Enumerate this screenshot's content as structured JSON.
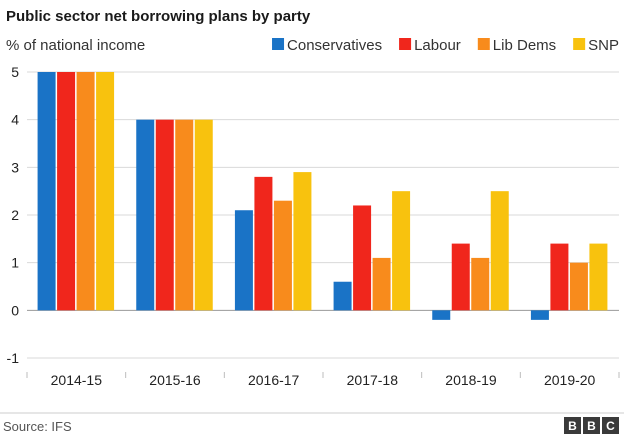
{
  "chart_data": {
    "type": "bar",
    "title": "Public sector net borrowing plans by party",
    "ylabel": "% of national income",
    "xlabel": "",
    "categories": [
      "2014-15",
      "2015-16",
      "2016-17",
      "2017-18",
      "2018-19",
      "2019-20"
    ],
    "series": [
      {
        "name": "Conservatives",
        "color": "#1a73c6",
        "values": [
          5,
          4,
          2.1,
          0.6,
          -0.2,
          -0.2
        ]
      },
      {
        "name": "Labour",
        "color": "#f0261c",
        "values": [
          5,
          4,
          2.8,
          2.2,
          1.4,
          1.4
        ]
      },
      {
        "name": "Lib Dems",
        "color": "#f88b1c",
        "values": [
          5,
          4,
          2.3,
          1.1,
          1.1,
          1.0
        ]
      },
      {
        "name": "SNP",
        "color": "#f8c20e",
        "values": [
          5,
          4,
          2.9,
          2.5,
          2.5,
          1.4
        ]
      }
    ],
    "ylim": [
      -1,
      5
    ],
    "yticks": [
      "5",
      "4",
      "3",
      "2",
      "1",
      "0",
      "-1"
    ],
    "grid": true,
    "legend_position": "top-right"
  },
  "source": "Source: IFS",
  "logo": {
    "letters": [
      "B",
      "B",
      "C"
    ]
  }
}
